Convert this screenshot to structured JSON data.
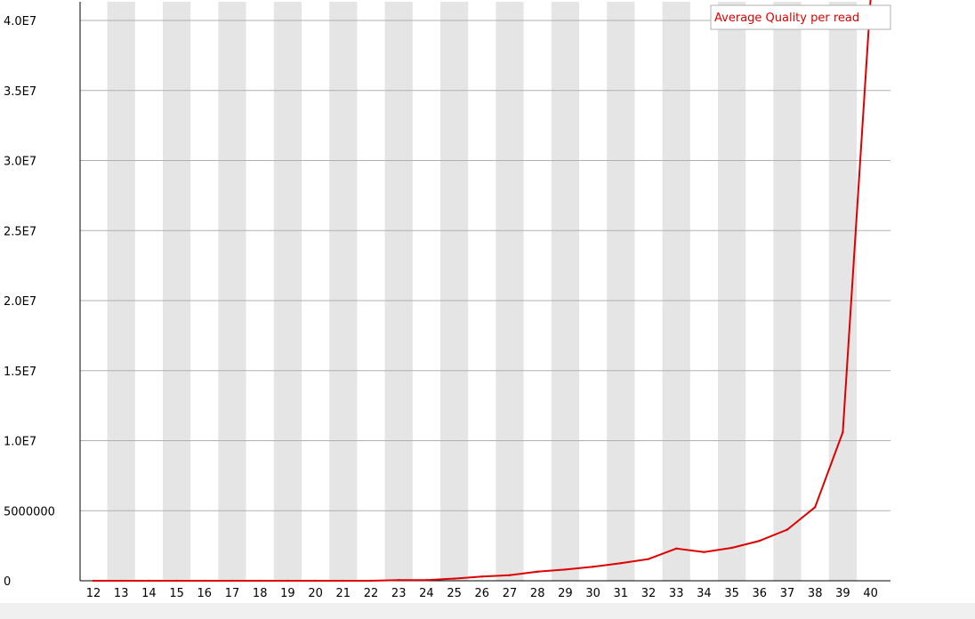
{
  "chart_data": {
    "type": "line",
    "title": "",
    "xlabel": "",
    "ylabel": "",
    "categories": [
      "12",
      "13",
      "14",
      "15",
      "16",
      "17",
      "18",
      "19",
      "20",
      "21",
      "22",
      "23",
      "24",
      "25",
      "26",
      "27",
      "28",
      "29",
      "30",
      "31",
      "32",
      "33",
      "34",
      "35",
      "36",
      "37",
      "38",
      "39",
      "40"
    ],
    "y_ticks": [
      "0",
      "5000000",
      "1.0E7",
      "1.5E7",
      "2.0E7",
      "2.5E7",
      "3.0E7",
      "3.5E7",
      "4.0E7"
    ],
    "ylim": [
      0,
      40000000
    ],
    "series": [
      {
        "name": "Average Quality per read",
        "color": "#dd0000",
        "values": [
          0,
          0,
          0,
          0,
          0,
          0,
          0,
          0,
          0,
          0,
          0,
          50000,
          50000,
          150000,
          300000,
          400000,
          650000,
          800000,
          1000000,
          1250000,
          1550000,
          2300000,
          2050000,
          2350000,
          2850000,
          3650000,
          5250000,
          10600000,
          41500000
        ]
      }
    ],
    "legend_position": "top-right",
    "grid": true,
    "colors": {
      "stripe": "#e5e5e5",
      "grid": "#b0b0b0",
      "axis": "#000000"
    }
  }
}
